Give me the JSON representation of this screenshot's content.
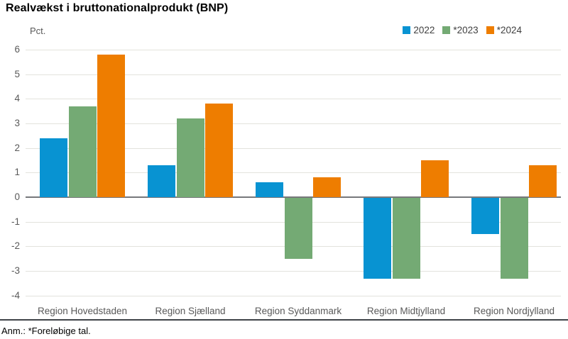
{
  "title": "Realvækst i bruttonationalprodukt (BNP)",
  "footnote": "Anm.: *Foreløbige tal.",
  "chart_data": {
    "type": "bar",
    "title": "Realvækst i bruttonationalprodukt (BNP)",
    "unit_label": "Pct.",
    "categories": [
      "Region Hovedstaden",
      "Region Sjælland",
      "Region Syddanmark",
      "Region Midtjylland",
      "Region Nordjylland"
    ],
    "series": [
      {
        "name": "2022",
        "color": "#0893d2",
        "values": [
          2.4,
          1.3,
          0.6,
          -3.3,
          -1.5
        ]
      },
      {
        "name": "*2023",
        "color": "#74aa74",
        "values": [
          3.7,
          3.2,
          -2.5,
          -3.3,
          -3.3
        ]
      },
      {
        "name": "*2024",
        "color": "#ee7d00",
        "values": [
          5.8,
          3.8,
          0.8,
          1.5,
          1.3
        ]
      }
    ],
    "ylim": [
      -4,
      6
    ],
    "ytick_step": 1,
    "grid": true,
    "legend_position": "top-right",
    "note": "Anm.: *Foreløbige tal."
  },
  "colors": {
    "gridline": "#e3e3dd",
    "zero_line": "#77787b",
    "axis_text": "#595959",
    "separator": "#3f4348",
    "series_2022": "#0893d2",
    "series_2023": "#74aa74",
    "series_2024": "#ee7d00"
  }
}
